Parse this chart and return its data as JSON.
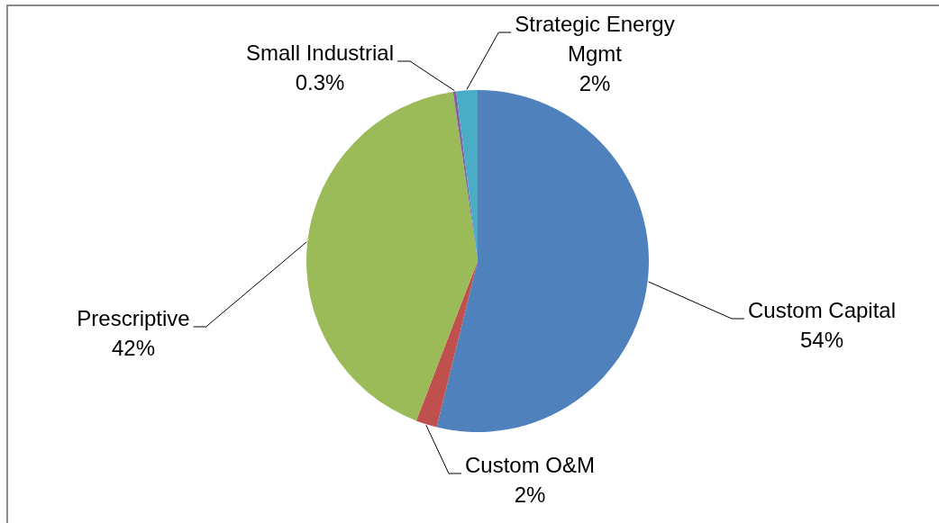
{
  "chart_data": {
    "type": "pie",
    "categories": [
      "Custom Capital",
      "Custom O&M",
      "Prescriptive",
      "Small Industrial",
      "Strategic Energy Mgmt"
    ],
    "values": [
      54,
      2,
      42,
      0.3,
      2
    ],
    "colors": [
      "#4f81bd",
      "#c0504d",
      "#9bbb59",
      "#8064a2",
      "#4bacc6"
    ],
    "value_labels": [
      "54%",
      "2%",
      "42%",
      "0.3%",
      "2%"
    ]
  }
}
